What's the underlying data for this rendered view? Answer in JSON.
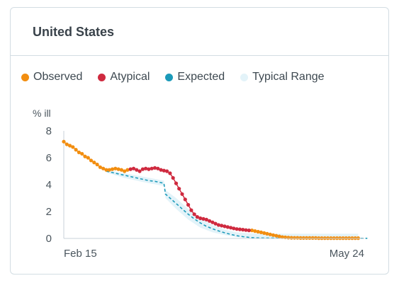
{
  "card": {
    "title": "United States"
  },
  "legend": [
    {
      "label": "Observed",
      "color": "#f28e10"
    },
    {
      "label": "Atypical",
      "color": "#cf2a3f"
    },
    {
      "label": "Expected",
      "color": "#1b9ab9"
    },
    {
      "label": "Typical Range",
      "color": "#e3f3f9"
    }
  ],
  "chart_data": {
    "type": "line",
    "ylabel": "% ill",
    "ylim": [
      0,
      8
    ],
    "yticks": [
      "0",
      "2",
      "4",
      "6",
      "8"
    ],
    "x_tick_labels": [
      "Feb 15",
      "May 24"
    ],
    "x_count": 100,
    "series": [
      {
        "name": "Observed",
        "color": "#f28e10",
        "points": [
          [
            0,
            7.2
          ],
          [
            1,
            7.0
          ],
          [
            2,
            6.9
          ],
          [
            3,
            6.8
          ],
          [
            4,
            6.6
          ],
          [
            5,
            6.4
          ],
          [
            6,
            6.3
          ],
          [
            7,
            6.1
          ],
          [
            8,
            6.0
          ],
          [
            9,
            5.8
          ],
          [
            10,
            5.65
          ],
          [
            11,
            5.5
          ],
          [
            12,
            5.3
          ],
          [
            13,
            5.2
          ],
          [
            14,
            5.1
          ],
          [
            15,
            5.1
          ],
          [
            16,
            5.15
          ],
          [
            17,
            5.2
          ],
          [
            18,
            5.15
          ],
          [
            19,
            5.1
          ],
          [
            20,
            5.0
          ],
          [
            21,
            5.1
          ],
          [
            62,
            0.6
          ],
          [
            63,
            0.55
          ],
          [
            64,
            0.5
          ],
          [
            65,
            0.45
          ],
          [
            66,
            0.4
          ],
          [
            67,
            0.35
          ],
          [
            68,
            0.3
          ],
          [
            69,
            0.25
          ],
          [
            70,
            0.2
          ],
          [
            71,
            0.15
          ],
          [
            72,
            0.1
          ],
          [
            73,
            0.08
          ],
          [
            74,
            0.06
          ],
          [
            75,
            0.05
          ],
          [
            76,
            0.04
          ],
          [
            77,
            0.04
          ],
          [
            78,
            0.03
          ],
          [
            79,
            0.03
          ],
          [
            80,
            0.03
          ],
          [
            81,
            0.03
          ],
          [
            82,
            0.03
          ],
          [
            83,
            0.03
          ],
          [
            84,
            0.02
          ],
          [
            85,
            0.02
          ],
          [
            86,
            0.02
          ],
          [
            87,
            0.02
          ],
          [
            88,
            0.02
          ],
          [
            89,
            0.02
          ],
          [
            90,
            0.02
          ],
          [
            91,
            0.02
          ],
          [
            92,
            0.02
          ],
          [
            93,
            0.02
          ],
          [
            94,
            0.02
          ],
          [
            95,
            0.02
          ],
          [
            96,
            0.02
          ],
          [
            97,
            0.02
          ]
        ]
      },
      {
        "name": "Atypical",
        "color": "#cf2a3f",
        "points": [
          [
            22,
            5.15
          ],
          [
            23,
            5.2
          ],
          [
            24,
            5.1
          ],
          [
            25,
            5.0
          ],
          [
            26,
            5.15
          ],
          [
            27,
            5.2
          ],
          [
            28,
            5.15
          ],
          [
            29,
            5.2
          ],
          [
            30,
            5.25
          ],
          [
            31,
            5.2
          ],
          [
            32,
            5.1
          ],
          [
            33,
            5.05
          ],
          [
            34,
            5.0
          ],
          [
            35,
            4.85
          ],
          [
            36,
            4.5
          ],
          [
            37,
            4.1
          ],
          [
            38,
            3.7
          ],
          [
            39,
            3.3
          ],
          [
            40,
            2.9
          ],
          [
            41,
            2.5
          ],
          [
            42,
            2.1
          ],
          [
            43,
            1.8
          ],
          [
            44,
            1.6
          ],
          [
            45,
            1.5
          ],
          [
            46,
            1.45
          ],
          [
            47,
            1.4
          ],
          [
            48,
            1.3
          ],
          [
            49,
            1.2
          ],
          [
            50,
            1.1
          ],
          [
            51,
            1.0
          ],
          [
            52,
            0.95
          ],
          [
            53,
            0.9
          ],
          [
            54,
            0.85
          ],
          [
            55,
            0.8
          ],
          [
            56,
            0.75
          ],
          [
            57,
            0.7
          ],
          [
            58,
            0.68
          ],
          [
            59,
            0.65
          ],
          [
            60,
            0.62
          ],
          [
            61,
            0.6
          ]
        ]
      },
      {
        "name": "Expected",
        "color": "#1b9ab9",
        "dashed": true,
        "points": [
          [
            14,
            5.0
          ],
          [
            16,
            4.9
          ],
          [
            18,
            4.8
          ],
          [
            20,
            4.7
          ],
          [
            22,
            4.6
          ],
          [
            24,
            4.5
          ],
          [
            26,
            4.4
          ],
          [
            28,
            4.3
          ],
          [
            30,
            4.25
          ],
          [
            32,
            4.15
          ],
          [
            33,
            4.1
          ],
          [
            33.5,
            3.3
          ],
          [
            35,
            3.0
          ],
          [
            37,
            2.6
          ],
          [
            39,
            2.2
          ],
          [
            41,
            1.8
          ],
          [
            43,
            1.45
          ],
          [
            45,
            1.15
          ],
          [
            47,
            0.9
          ],
          [
            49,
            0.72
          ],
          [
            51,
            0.56
          ],
          [
            53,
            0.42
          ],
          [
            55,
            0.3
          ],
          [
            57,
            0.2
          ],
          [
            59,
            0.13
          ],
          [
            61,
            0.08
          ],
          [
            63,
            0.05
          ],
          [
            65,
            0.03
          ],
          [
            70,
            0.02
          ],
          [
            80,
            0.01
          ],
          [
            90,
            0.01
          ],
          [
            100,
            0.01
          ]
        ]
      }
    ],
    "typical_range": {
      "color": "#e3f3f9",
      "upper": [
        [
          14,
          5.1
        ],
        [
          20,
          4.85
        ],
        [
          26,
          4.6
        ],
        [
          33,
          4.3
        ],
        [
          33.5,
          3.6
        ],
        [
          37,
          3.0
        ],
        [
          41,
          2.2
        ],
        [
          45,
          1.5
        ],
        [
          49,
          1.0
        ],
        [
          53,
          0.65
        ],
        [
          57,
          0.45
        ],
        [
          61,
          0.38
        ],
        [
          65,
          0.35
        ],
        [
          70,
          0.35
        ],
        [
          80,
          0.35
        ],
        [
          90,
          0.35
        ],
        [
          97,
          0.35
        ]
      ],
      "lower": [
        [
          14,
          4.9
        ],
        [
          20,
          4.5
        ],
        [
          26,
          4.2
        ],
        [
          33,
          3.9
        ],
        [
          33.5,
          3.0
        ],
        [
          37,
          2.2
        ],
        [
          41,
          1.4
        ],
        [
          45,
          0.8
        ],
        [
          49,
          0.45
        ],
        [
          53,
          0.25
        ],
        [
          57,
          0.1
        ],
        [
          61,
          0.05
        ],
        [
          65,
          0.0
        ],
        [
          70,
          0.0
        ],
        [
          80,
          0.0
        ],
        [
          90,
          0.0
        ],
        [
          97,
          0.0
        ]
      ]
    }
  }
}
